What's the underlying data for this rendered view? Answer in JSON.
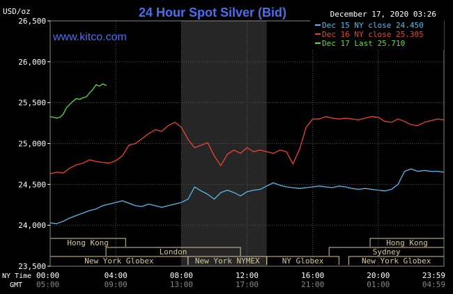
{
  "chart_data": {
    "type": "line",
    "title": "24 Hour Spot Silver (Bid)",
    "ylabel": "USD/oz",
    "watermark": "www.kitco.com",
    "timestamp": "December 17, 2020 03:26",
    "ylim": [
      23.5,
      26.5
    ],
    "y_ticks": [
      "26,500",
      "26,000",
      "25,500",
      "25,000",
      "24,500",
      "24,000",
      "23,500"
    ],
    "y_tick_values": [
      26.5,
      26.0,
      25.5,
      25.0,
      24.5,
      24.0,
      23.5
    ],
    "xlim": [
      0,
      24
    ],
    "x_ticks": [
      0,
      4,
      8,
      12,
      16,
      20,
      24
    ],
    "x_ticks_ny": [
      "00:00",
      "04:00",
      "08:00",
      "12:00",
      "16:00",
      "20:00",
      "23:59"
    ],
    "x_ticks_gmt": [
      "05:00",
      "09:00",
      "13:00",
      "17:00",
      "21:00",
      "01:00",
      "04:59"
    ],
    "row_label_ny": "NY Time",
    "row_label_gmt": "GMT",
    "shaded_range": [
      8,
      13.2
    ],
    "grid": true,
    "legend_position": "top-right",
    "series": [
      {
        "name": "Dec 15 NY close 24.450",
        "color": "#55bbee",
        "x": [
          0,
          0.4,
          0.8,
          1.2,
          1.6,
          2.0,
          2.4,
          2.8,
          3.2,
          3.6,
          4.0,
          4.4,
          4.8,
          5.2,
          5.6,
          6.0,
          6.4,
          6.8,
          7.2,
          7.6,
          8.0,
          8.4,
          8.8,
          9.2,
          9.6,
          10.0,
          10.4,
          10.8,
          11.2,
          11.6,
          12.0,
          12.4,
          12.8,
          13.2,
          13.6,
          14.0,
          14.4,
          14.8,
          15.2,
          15.6,
          16.0,
          16.4,
          16.8,
          17.2,
          17.6,
          18.0,
          18.4,
          18.8,
          19.2,
          19.6,
          20.0,
          20.4,
          20.8,
          21.2,
          21.6,
          22.0,
          22.4,
          22.8,
          23.2,
          23.6,
          24.0
        ],
        "y": [
          24.03,
          24.02,
          24.05,
          24.09,
          24.12,
          24.15,
          24.18,
          24.2,
          24.24,
          24.26,
          24.28,
          24.3,
          24.27,
          24.24,
          24.23,
          24.26,
          24.24,
          24.22,
          24.24,
          24.26,
          24.28,
          24.32,
          24.47,
          24.42,
          24.38,
          24.32,
          24.4,
          24.43,
          24.4,
          24.36,
          24.41,
          24.43,
          24.44,
          24.48,
          24.52,
          24.49,
          24.47,
          24.46,
          24.45,
          24.46,
          24.47,
          24.48,
          24.47,
          24.46,
          24.48,
          24.47,
          24.45,
          24.44,
          24.45,
          24.44,
          24.43,
          24.42,
          24.44,
          24.5,
          24.66,
          24.69,
          24.66,
          24.67,
          24.66,
          24.66,
          24.65
        ]
      },
      {
        "name": "Dec 16 NY close 25.305",
        "color": "#ee4433",
        "x": [
          0,
          0.4,
          0.8,
          1.2,
          1.6,
          2.0,
          2.4,
          2.8,
          3.2,
          3.6,
          4.0,
          4.4,
          4.8,
          5.2,
          5.6,
          6.0,
          6.4,
          6.8,
          7.2,
          7.6,
          8.0,
          8.4,
          8.8,
          9.2,
          9.6,
          10.0,
          10.4,
          10.8,
          11.2,
          11.6,
          12.0,
          12.4,
          12.8,
          13.2,
          13.6,
          14.0,
          14.4,
          14.8,
          15.2,
          15.6,
          16.0,
          16.4,
          16.8,
          17.2,
          17.6,
          18.0,
          18.4,
          18.8,
          19.2,
          19.6,
          20.0,
          20.4,
          20.8,
          21.2,
          21.6,
          22.0,
          22.4,
          22.8,
          23.2,
          23.6,
          24.0
        ],
        "y": [
          24.63,
          24.65,
          24.64,
          24.7,
          24.74,
          24.76,
          24.8,
          24.78,
          24.77,
          24.76,
          24.79,
          24.85,
          24.98,
          25.0,
          25.06,
          25.12,
          25.17,
          25.15,
          25.22,
          25.26,
          25.2,
          25.05,
          24.95,
          24.98,
          25.01,
          24.85,
          24.73,
          24.87,
          24.92,
          24.88,
          24.95,
          24.9,
          24.92,
          24.9,
          24.88,
          24.92,
          24.9,
          24.75,
          24.93,
          25.2,
          25.3,
          25.3,
          25.33,
          25.31,
          25.3,
          25.31,
          25.3,
          25.29,
          25.31,
          25.33,
          25.32,
          25.27,
          25.26,
          25.3,
          25.27,
          25.23,
          25.22,
          25.26,
          25.28,
          25.3,
          25.29
        ]
      },
      {
        "name": "Dec 17 Last 25.710",
        "color": "#66dd33",
        "x": [
          0,
          0.2,
          0.4,
          0.6,
          0.8,
          1.0,
          1.2,
          1.4,
          1.6,
          1.8,
          2.0,
          2.2,
          2.4,
          2.6,
          2.8,
          3.0,
          3.2,
          3.43
        ],
        "y": [
          25.33,
          25.32,
          25.31,
          25.32,
          25.36,
          25.44,
          25.48,
          25.52,
          25.55,
          25.54,
          25.56,
          25.57,
          25.62,
          25.66,
          25.72,
          25.7,
          25.73,
          25.71
        ]
      }
    ],
    "market_sessions": [
      {
        "label": "Hong Kong",
        "row": 1,
        "start": 0,
        "end": 4.6
      },
      {
        "label": "Hong Kong",
        "row": 1,
        "start": 19.5,
        "end": 24
      },
      {
        "label": "London",
        "row": 2,
        "start": 3.4,
        "end": 11.6
      },
      {
        "label": "Sydney",
        "row": 2,
        "start": 17.0,
        "end": 24
      },
      {
        "label": "New York Globex",
        "row": 3,
        "start": 0,
        "end": 8.4
      },
      {
        "label": "New York NYMEX",
        "row": 3,
        "start": 8.4,
        "end": 13.2
      },
      {
        "label": "NY Globex",
        "row": 3,
        "start": 13.2,
        "end": 17.6
      },
      {
        "label": "New York Globex",
        "row": 3,
        "start": 18.2,
        "end": 24
      }
    ]
  }
}
